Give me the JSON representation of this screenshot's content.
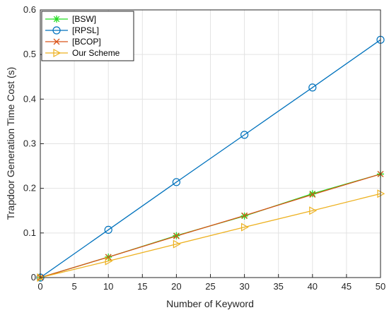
{
  "chart_data": {
    "type": "line",
    "xlabel": "Number of Keyword",
    "ylabel": "Trapdoor Generation Time Cost (s)",
    "xlim": [
      0,
      50
    ],
    "ylim": [
      0,
      0.6
    ],
    "xticks": [
      0,
      5,
      10,
      15,
      20,
      25,
      30,
      35,
      40,
      45,
      50
    ],
    "yticks": [
      0,
      0.1,
      0.2,
      0.3,
      0.4,
      0.5,
      0.6
    ],
    "grid": true,
    "legend_position": "top-left",
    "x": [
      0,
      10,
      20,
      30,
      40,
      50
    ],
    "series": [
      {
        "name": "[BSW]",
        "values": [
          0,
          0.046,
          0.094,
          0.138,
          0.188,
          0.232
        ],
        "color": "#22dd22",
        "marker": "asterisk"
      },
      {
        "name": "[RPSL]",
        "values": [
          0,
          0.107,
          0.214,
          0.32,
          0.426,
          0.533
        ],
        "color": "#0072bd",
        "marker": "circle"
      },
      {
        "name": "[BCOP]",
        "values": [
          0,
          0.046,
          0.093,
          0.139,
          0.186,
          0.232
        ],
        "color": "#d95319",
        "marker": "x"
      },
      {
        "name": "Our Scheme",
        "values": [
          0,
          0.037,
          0.075,
          0.113,
          0.15,
          0.188
        ],
        "color": "#edb120",
        "marker": "triangle-right"
      }
    ]
  }
}
